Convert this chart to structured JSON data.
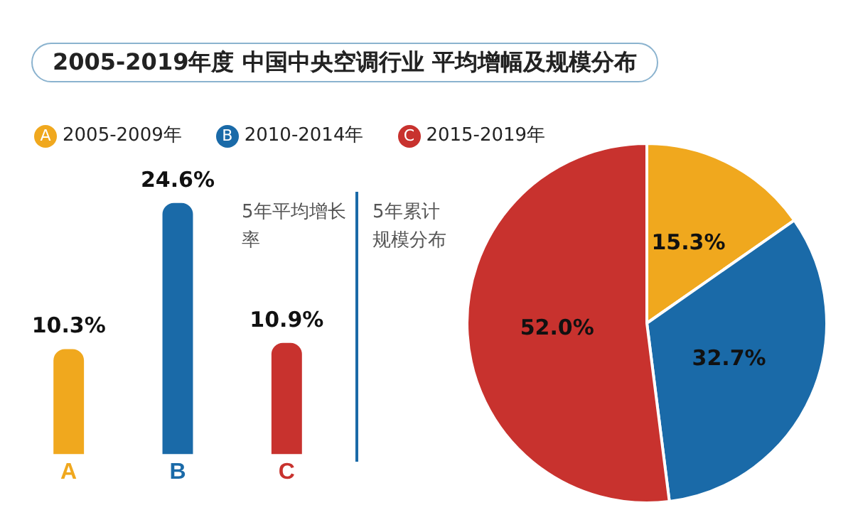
{
  "chart_data": [
    {
      "type": "bar",
      "title": "2005-2019年度 中国中央空调行业 平均增幅及规模分布",
      "categories": [
        "A",
        "B",
        "C"
      ],
      "values": [
        10.3,
        24.6,
        10.9
      ],
      "colors": [
        "#f0a81e",
        "#1a6aa8",
        "#c8322e"
      ],
      "value_labels": [
        "10.3%",
        "24.6%",
        "10.9%"
      ],
      "annotations": [
        "5年平均增长率"
      ],
      "tick_labels": "x",
      "grid": false
    },
    {
      "type": "pie",
      "title": "5年累计规模分布",
      "categories": [
        "2005-2009年",
        "2010-2014年",
        "2015-2019年"
      ],
      "values": [
        15.3,
        32.7,
        52.0
      ],
      "colors": [
        "#f0a81e",
        "#1a6aa8",
        "#c8322e"
      ],
      "value_labels": [
        "15.3%",
        "32.7%",
        "52.0%"
      ],
      "legend": "top"
    }
  ]
}
